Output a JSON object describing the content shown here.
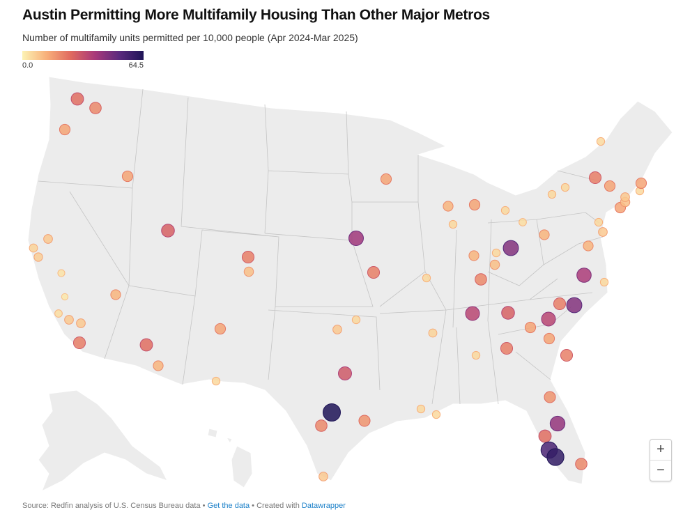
{
  "title": "Austin Permitting More Multifamily Housing Than Other Major Metros",
  "subtitle": "Number of multifamily units permitted per 10,000 people (Apr 2024-Mar 2025)",
  "legend": {
    "min_label": "0.0",
    "max_label": "64.5",
    "min": 0,
    "max": 64.5,
    "colors": [
      "#fcf2b4",
      "#f8b07a",
      "#e06a5f",
      "#a8397a",
      "#5b2a7e",
      "#1e1457"
    ]
  },
  "map": {
    "land_color": "#ececec",
    "border_color": "#bdbdbd",
    "symbol_values": [
      25,
      20,
      15,
      15,
      28,
      8,
      6,
      7,
      3,
      2,
      4,
      8,
      8,
      12,
      22,
      25,
      12,
      15,
      5,
      22,
      10,
      40,
      22,
      15,
      8,
      5,
      30,
      64.5,
      20,
      18,
      8,
      12,
      5,
      15,
      5,
      4,
      45,
      5,
      12,
      10,
      20,
      5,
      35,
      28,
      6,
      5,
      22,
      15,
      35,
      15,
      45,
      22,
      38,
      5,
      12,
      8,
      5,
      12,
      15,
      10,
      8,
      5,
      15,
      15,
      22,
      5,
      5,
      5,
      22,
      42,
      25,
      55,
      60,
      20,
      18,
      5,
      5
    ]
  },
  "zoom_controls": {
    "zoom_in": "+",
    "zoom_out": "−"
  },
  "footer": {
    "source": "Source: Redfin analysis of U.S. Census Bureau data",
    "sep1": " • ",
    "get_data": "Get the data",
    "sep2": " • Created with ",
    "credit": "Datawrapper"
  }
}
